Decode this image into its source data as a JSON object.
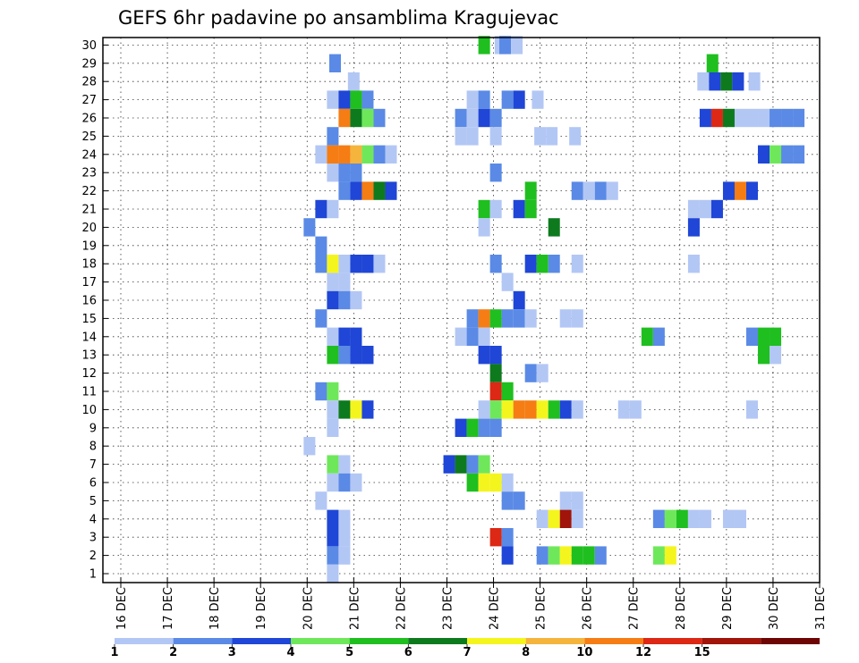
{
  "chart_data": {
    "type": "heatmap",
    "title": "GEFS 6hr padavine po ansamblima Kragujevac",
    "xlabel": "",
    "ylabel": "",
    "x_ticks": [
      "16 DEC",
      "17 DEC",
      "18 DEC",
      "19 DEC",
      "20 DEC",
      "21 DEC",
      "22 DEC",
      "23 DEC",
      "24 DEC",
      "25 DEC",
      "26 DEC",
      "27 DEC",
      "28 DEC",
      "29 DEC",
      "30 DEC",
      "31 DEC"
    ],
    "y_ticks": [
      "1",
      "2",
      "3",
      "4",
      "5",
      "6",
      "7",
      "8",
      "9",
      "10",
      "11",
      "12",
      "13",
      "14",
      "15",
      "16",
      "17",
      "18",
      "19",
      "20",
      "21",
      "22",
      "23",
      "24",
      "25",
      "26",
      "27",
      "28",
      "29",
      "30"
    ],
    "xlim": [
      "16 DEC 00z",
      "31 DEC 00z"
    ],
    "ylim": [
      0.5,
      30.5
    ],
    "time_step_hours": 6,
    "grid": "dotted",
    "colorbar": {
      "levels": [
        1,
        2,
        3,
        4,
        5,
        6,
        7,
        8,
        10,
        12,
        15,
        20
      ],
      "colors": [
        "#b3c7f5",
        "#5a8ae6",
        "#1f46d6",
        "#6ee85a",
        "#1fbf1f",
        "#0e7a1e",
        "#f5f51e",
        "#f5b43c",
        "#f57d14",
        "#dc2814",
        "#a0140a",
        "#6e0505"
      ]
    },
    "cells": [
      {
        "member": 30,
        "points": [
          {
            "x": 23.8,
            "v": 5
          },
          {
            "x": 24.15,
            "v": 1
          },
          {
            "x": 24.25,
            "v": 2
          },
          {
            "x": 24.5,
            "v": 1
          }
        ]
      },
      {
        "member": 29,
        "points": [
          {
            "x": 20.6,
            "v": 2
          },
          {
            "x": 28.7,
            "v": 5
          }
        ]
      },
      {
        "member": 28,
        "points": [
          {
            "x": 21.0,
            "v": 1
          },
          {
            "x": 28.5,
            "v": 1
          },
          {
            "x": 28.75,
            "v": 3
          },
          {
            "x": 29.0,
            "v": 6
          },
          {
            "x": 29.25,
            "v": 3
          },
          {
            "x": 29.6,
            "v": 1
          }
        ]
      },
      {
        "member": 27,
        "points": [
          {
            "x": 20.55,
            "v": 1
          },
          {
            "x": 20.8,
            "v": 3
          },
          {
            "x": 21.05,
            "v": 5
          },
          {
            "x": 21.3,
            "v": 2
          },
          {
            "x": 23.55,
            "v": 1
          },
          {
            "x": 23.8,
            "v": 2
          },
          {
            "x": 24.3,
            "v": 2
          },
          {
            "x": 24.55,
            "v": 3
          },
          {
            "x": 24.95,
            "v": 1
          }
        ]
      },
      {
        "member": 26,
        "points": [
          {
            "x": 20.8,
            "v": 10
          },
          {
            "x": 21.05,
            "v": 6
          },
          {
            "x": 21.3,
            "v": 4
          },
          {
            "x": 21.55,
            "v": 2
          },
          {
            "x": 23.3,
            "v": 2
          },
          {
            "x": 23.55,
            "v": 1
          },
          {
            "x": 23.8,
            "v": 3
          },
          {
            "x": 24.05,
            "v": 2
          },
          {
            "x": 28.55,
            "v": 3
          },
          {
            "x": 28.8,
            "v": 12
          },
          {
            "x": 29.05,
            "v": 6
          },
          {
            "x": 29.3,
            "v": 1
          },
          {
            "x": 29.55,
            "v": 1
          },
          {
            "x": 29.8,
            "v": 1
          },
          {
            "x": 30.05,
            "v": 2
          },
          {
            "x": 30.3,
            "v": 2
          },
          {
            "x": 30.55,
            "v": 2
          }
        ]
      },
      {
        "member": 25,
        "points": [
          {
            "x": 20.55,
            "v": 2
          },
          {
            "x": 23.3,
            "v": 1
          },
          {
            "x": 23.55,
            "v": 1
          },
          {
            "x": 24.05,
            "v": 1
          },
          {
            "x": 25.0,
            "v": 1
          },
          {
            "x": 25.25,
            "v": 1
          },
          {
            "x": 25.75,
            "v": 1
          }
        ]
      },
      {
        "member": 24,
        "points": [
          {
            "x": 20.3,
            "v": 1
          },
          {
            "x": 20.55,
            "v": 10
          },
          {
            "x": 20.8,
            "v": 10
          },
          {
            "x": 21.05,
            "v": 8
          },
          {
            "x": 21.3,
            "v": 4
          },
          {
            "x": 21.55,
            "v": 2
          },
          {
            "x": 21.8,
            "v": 1
          },
          {
            "x": 29.8,
            "v": 3
          },
          {
            "x": 30.05,
            "v": 4
          },
          {
            "x": 30.3,
            "v": 2
          },
          {
            "x": 30.55,
            "v": 2
          }
        ]
      },
      {
        "member": 23,
        "points": [
          {
            "x": 20.55,
            "v": 1
          },
          {
            "x": 20.8,
            "v": 2
          },
          {
            "x": 21.05,
            "v": 2
          },
          {
            "x": 24.05,
            "v": 2
          }
        ]
      },
      {
        "member": 22,
        "points": [
          {
            "x": 20.8,
            "v": 2
          },
          {
            "x": 21.05,
            "v": 3
          },
          {
            "x": 21.3,
            "v": 10
          },
          {
            "x": 21.55,
            "v": 6
          },
          {
            "x": 21.8,
            "v": 3
          },
          {
            "x": 24.8,
            "v": 5
          },
          {
            "x": 25.8,
            "v": 2
          },
          {
            "x": 26.05,
            "v": 1
          },
          {
            "x": 26.3,
            "v": 2
          },
          {
            "x": 26.55,
            "v": 1
          },
          {
            "x": 29.05,
            "v": 3
          },
          {
            "x": 29.3,
            "v": 10
          },
          {
            "x": 29.55,
            "v": 3
          }
        ]
      },
      {
        "member": 21,
        "points": [
          {
            "x": 20.3,
            "v": 3
          },
          {
            "x": 20.55,
            "v": 1
          },
          {
            "x": 23.8,
            "v": 5
          },
          {
            "x": 24.05,
            "v": 1
          },
          {
            "x": 24.55,
            "v": 3
          },
          {
            "x": 24.8,
            "v": 5
          },
          {
            "x": 28.3,
            "v": 1
          },
          {
            "x": 28.55,
            "v": 1
          },
          {
            "x": 28.8,
            "v": 3
          }
        ]
      },
      {
        "member": 20,
        "points": [
          {
            "x": 20.05,
            "v": 2
          },
          {
            "x": 23.8,
            "v": 1
          },
          {
            "x": 25.3,
            "v": 6
          },
          {
            "x": 28.3,
            "v": 3
          }
        ]
      },
      {
        "member": 19,
        "points": [
          {
            "x": 20.3,
            "v": 2
          }
        ]
      },
      {
        "member": 18,
        "points": [
          {
            "x": 20.3,
            "v": 2
          },
          {
            "x": 20.55,
            "v": 7
          },
          {
            "x": 20.8,
            "v": 1
          },
          {
            "x": 21.05,
            "v": 3
          },
          {
            "x": 21.3,
            "v": 3
          },
          {
            "x": 21.55,
            "v": 1
          },
          {
            "x": 24.05,
            "v": 2
          },
          {
            "x": 24.8,
            "v": 3
          },
          {
            "x": 25.05,
            "v": 5
          },
          {
            "x": 25.3,
            "v": 2
          },
          {
            "x": 25.8,
            "v": 1
          },
          {
            "x": 28.3,
            "v": 1
          }
        ]
      },
      {
        "member": 17,
        "points": [
          {
            "x": 20.55,
            "v": 1
          },
          {
            "x": 20.8,
            "v": 1
          },
          {
            "x": 24.3,
            "v": 1
          }
        ]
      },
      {
        "member": 16,
        "points": [
          {
            "x": 20.55,
            "v": 3
          },
          {
            "x": 20.8,
            "v": 2
          },
          {
            "x": 21.05,
            "v": 1
          },
          {
            "x": 24.55,
            "v": 3
          }
        ]
      },
      {
        "member": 15,
        "points": [
          {
            "x": 20.3,
            "v": 2
          },
          {
            "x": 23.55,
            "v": 2
          },
          {
            "x": 23.8,
            "v": 10
          },
          {
            "x": 24.05,
            "v": 5
          },
          {
            "x": 24.3,
            "v": 2
          },
          {
            "x": 24.55,
            "v": 2
          },
          {
            "x": 24.8,
            "v": 1
          },
          {
            "x": 25.55,
            "v": 1
          },
          {
            "x": 25.8,
            "v": 1
          }
        ]
      },
      {
        "member": 14,
        "points": [
          {
            "x": 20.55,
            "v": 1
          },
          {
            "x": 20.8,
            "v": 3
          },
          {
            "x": 21.05,
            "v": 3
          },
          {
            "x": 23.3,
            "v": 1
          },
          {
            "x": 23.55,
            "v": 2
          },
          {
            "x": 23.8,
            "v": 1
          },
          {
            "x": 27.3,
            "v": 5
          },
          {
            "x": 27.55,
            "v": 2
          },
          {
            "x": 29.55,
            "v": 2
          },
          {
            "x": 29.8,
            "v": 5
          },
          {
            "x": 30.05,
            "v": 5
          }
        ]
      },
      {
        "member": 13,
        "points": [
          {
            "x": 20.55,
            "v": 5
          },
          {
            "x": 20.8,
            "v": 2
          },
          {
            "x": 21.05,
            "v": 3
          },
          {
            "x": 21.3,
            "v": 3
          },
          {
            "x": 23.8,
            "v": 3
          },
          {
            "x": 24.05,
            "v": 3
          },
          {
            "x": 29.8,
            "v": 5
          },
          {
            "x": 30.05,
            "v": 1
          }
        ]
      },
      {
        "member": 12,
        "points": [
          {
            "x": 24.05,
            "v": 6
          },
          {
            "x": 24.8,
            "v": 2
          },
          {
            "x": 25.05,
            "v": 1
          }
        ]
      },
      {
        "member": 11,
        "points": [
          {
            "x": 20.3,
            "v": 2
          },
          {
            "x": 20.55,
            "v": 4
          },
          {
            "x": 24.05,
            "v": 12
          },
          {
            "x": 24.3,
            "v": 5
          }
        ]
      },
      {
        "member": 10,
        "points": [
          {
            "x": 20.55,
            "v": 1
          },
          {
            "x": 20.8,
            "v": 6
          },
          {
            "x": 21.05,
            "v": 7
          },
          {
            "x": 21.3,
            "v": 3
          },
          {
            "x": 23.8,
            "v": 1
          },
          {
            "x": 24.05,
            "v": 4
          },
          {
            "x": 24.3,
            "v": 7
          },
          {
            "x": 24.55,
            "v": 10
          },
          {
            "x": 24.8,
            "v": 10
          },
          {
            "x": 25.05,
            "v": 7
          },
          {
            "x": 25.3,
            "v": 5
          },
          {
            "x": 25.55,
            "v": 3
          },
          {
            "x": 25.8,
            "v": 1
          },
          {
            "x": 26.8,
            "v": 1
          },
          {
            "x": 27.05,
            "v": 1
          },
          {
            "x": 29.55,
            "v": 1
          }
        ]
      },
      {
        "member": 9,
        "points": [
          {
            "x": 20.55,
            "v": 1
          },
          {
            "x": 23.3,
            "v": 3
          },
          {
            "x": 23.55,
            "v": 5
          },
          {
            "x": 23.8,
            "v": 2
          },
          {
            "x": 24.05,
            "v": 2
          }
        ]
      },
      {
        "member": 8,
        "points": [
          {
            "x": 20.05,
            "v": 1
          }
        ]
      },
      {
        "member": 7,
        "points": [
          {
            "x": 20.55,
            "v": 4
          },
          {
            "x": 20.8,
            "v": 1
          },
          {
            "x": 23.05,
            "v": 3
          },
          {
            "x": 23.3,
            "v": 6
          },
          {
            "x": 23.55,
            "v": 2
          },
          {
            "x": 23.8,
            "v": 4
          }
        ]
      },
      {
        "member": 6,
        "points": [
          {
            "x": 20.55,
            "v": 1
          },
          {
            "x": 20.8,
            "v": 2
          },
          {
            "x": 21.05,
            "v": 1
          },
          {
            "x": 23.55,
            "v": 5
          },
          {
            "x": 23.8,
            "v": 7
          },
          {
            "x": 24.05,
            "v": 7
          },
          {
            "x": 24.3,
            "v": 1
          }
        ]
      },
      {
        "member": 5,
        "points": [
          {
            "x": 20.3,
            "v": 1
          },
          {
            "x": 24.3,
            "v": 2
          },
          {
            "x": 24.55,
            "v": 2
          },
          {
            "x": 25.55,
            "v": 1
          },
          {
            "x": 25.8,
            "v": 1
          }
        ]
      },
      {
        "member": 4,
        "points": [
          {
            "x": 20.55,
            "v": 3
          },
          {
            "x": 20.8,
            "v": 1
          },
          {
            "x": 25.05,
            "v": 1
          },
          {
            "x": 25.3,
            "v": 7
          },
          {
            "x": 25.55,
            "v": 15
          },
          {
            "x": 25.8,
            "v": 1
          },
          {
            "x": 27.55,
            "v": 2
          },
          {
            "x": 27.8,
            "v": 4
          },
          {
            "x": 28.05,
            "v": 5
          },
          {
            "x": 28.3,
            "v": 1
          },
          {
            "x": 28.55,
            "v": 1
          },
          {
            "x": 29.05,
            "v": 1
          },
          {
            "x": 29.3,
            "v": 1
          }
        ]
      },
      {
        "member": 3,
        "points": [
          {
            "x": 20.55,
            "v": 3
          },
          {
            "x": 20.8,
            "v": 1
          },
          {
            "x": 24.05,
            "v": 12
          },
          {
            "x": 24.3,
            "v": 2
          }
        ]
      },
      {
        "member": 2,
        "points": [
          {
            "x": 20.55,
            "v": 2
          },
          {
            "x": 20.8,
            "v": 1
          },
          {
            "x": 24.3,
            "v": 3
          },
          {
            "x": 25.05,
            "v": 2
          },
          {
            "x": 25.3,
            "v": 4
          },
          {
            "x": 25.55,
            "v": 7
          },
          {
            "x": 25.8,
            "v": 5
          },
          {
            "x": 26.05,
            "v": 5
          },
          {
            "x": 26.3,
            "v": 2
          },
          {
            "x": 27.55,
            "v": 4
          },
          {
            "x": 27.8,
            "v": 7
          }
        ]
      },
      {
        "member": 1,
        "points": [
          {
            "x": 20.55,
            "v": 1
          }
        ]
      }
    ]
  }
}
